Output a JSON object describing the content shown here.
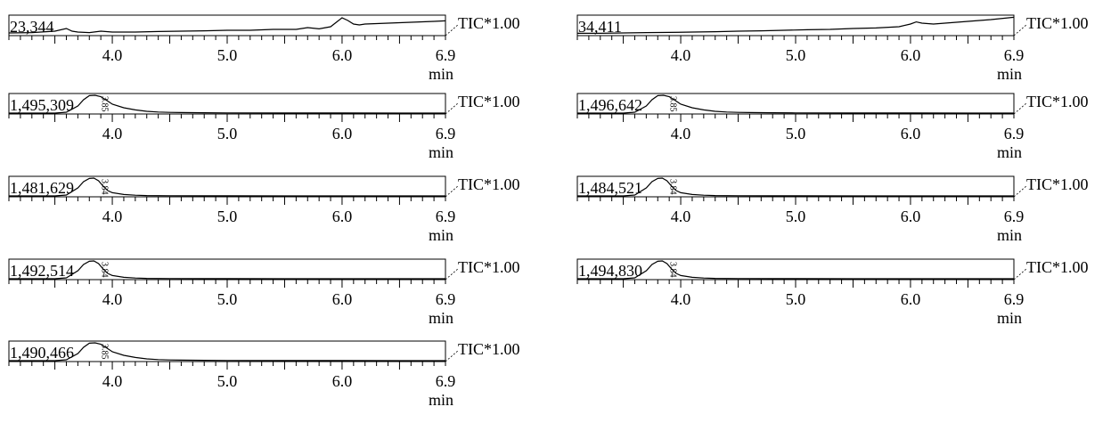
{
  "chart_data": [
    {
      "type": "line",
      "y_scale_label": "23,344",
      "right_label": "TIC*1.00",
      "x_ticks": [
        "4.0",
        "5.0",
        "6.0",
        "6.9"
      ],
      "x_unit": "min",
      "xlim": [
        3.1,
        6.9
      ],
      "x": [
        3.1,
        3.3,
        3.5,
        3.6,
        3.65,
        3.7,
        3.8,
        3.9,
        4.0,
        4.2,
        4.4,
        4.6,
        4.8,
        5.0,
        5.2,
        5.4,
        5.6,
        5.7,
        5.8,
        5.9,
        5.95,
        6.0,
        6.05,
        6.1,
        6.15,
        6.2,
        6.4,
        6.6,
        6.8,
        6.9
      ],
      "y": [
        0.1,
        0.12,
        0.2,
        0.35,
        0.2,
        0.15,
        0.12,
        0.2,
        0.15,
        0.15,
        0.18,
        0.2,
        0.22,
        0.25,
        0.25,
        0.3,
        0.3,
        0.4,
        0.33,
        0.45,
        0.7,
        0.95,
        0.8,
        0.6,
        0.55,
        0.6,
        0.65,
        0.7,
        0.75,
        0.78
      ],
      "ylim": [
        0,
        1
      ]
    },
    {
      "type": "line",
      "y_scale_label": "34,411",
      "right_label": "TIC*1.00",
      "x_ticks": [
        "4.0",
        "5.0",
        "6.0",
        "6.9"
      ],
      "x_unit": "min",
      "xlim": [
        3.1,
        6.9
      ],
      "x": [
        3.1,
        3.3,
        3.5,
        3.7,
        3.9,
        4.1,
        4.3,
        4.5,
        4.7,
        4.9,
        5.1,
        5.3,
        5.5,
        5.7,
        5.9,
        6.0,
        6.05,
        6.1,
        6.2,
        6.3,
        6.5,
        6.7,
        6.9
      ],
      "y": [
        0.08,
        0.08,
        0.1,
        0.12,
        0.13,
        0.15,
        0.17,
        0.2,
        0.22,
        0.25,
        0.28,
        0.3,
        0.35,
        0.38,
        0.45,
        0.6,
        0.72,
        0.65,
        0.6,
        0.65,
        0.75,
        0.85,
        0.98
      ],
      "ylim": [
        0,
        1
      ]
    },
    {
      "type": "line",
      "y_scale_label": "1,495,309",
      "peak_label": "3.85",
      "right_label": "TIC*1.00",
      "x_ticks": [
        "4.0",
        "5.0",
        "6.0",
        "6.9"
      ],
      "x_unit": "min",
      "xlim": [
        3.1,
        6.9
      ],
      "x": [
        3.1,
        3.5,
        3.6,
        3.7,
        3.75,
        3.8,
        3.85,
        3.9,
        3.95,
        4.0,
        4.1,
        4.2,
        4.3,
        4.4,
        4.5,
        4.6,
        4.8,
        5.0,
        5.5,
        6.0,
        6.5,
        6.9
      ],
      "y": [
        0,
        0,
        0.05,
        0.4,
        0.75,
        0.98,
        1.0,
        0.92,
        0.72,
        0.5,
        0.3,
        0.18,
        0.1,
        0.06,
        0.04,
        0.03,
        0.02,
        0.01,
        0.005,
        0.003,
        0.002,
        0.002
      ],
      "ylim": [
        0,
        1
      ]
    },
    {
      "type": "line",
      "y_scale_label": "1,496,642",
      "peak_label": "3.85",
      "right_label": "TIC*1.00",
      "x_ticks": [
        "4.0",
        "5.0",
        "6.0",
        "6.9"
      ],
      "x_unit": "min",
      "xlim": [
        3.1,
        6.9
      ],
      "x": [
        3.1,
        3.5,
        3.6,
        3.7,
        3.75,
        3.8,
        3.85,
        3.9,
        3.95,
        4.0,
        4.1,
        4.2,
        4.3,
        4.4,
        4.5,
        4.6,
        4.8,
        5.0,
        5.5,
        6.0,
        6.5,
        6.9
      ],
      "y": [
        0,
        0,
        0.05,
        0.4,
        0.75,
        0.98,
        1.0,
        0.92,
        0.72,
        0.5,
        0.3,
        0.18,
        0.1,
        0.06,
        0.04,
        0.03,
        0.02,
        0.01,
        0.005,
        0.003,
        0.002,
        0.002
      ],
      "ylim": [
        0,
        1
      ]
    },
    {
      "type": "line",
      "y_scale_label": "1,481,629",
      "peak_label": "3.84",
      "right_label": "TIC*1.00",
      "x_ticks": [
        "4.0",
        "5.0",
        "6.0",
        "6.9"
      ],
      "x_unit": "min",
      "xlim": [
        3.1,
        6.9
      ],
      "x": [
        3.1,
        3.5,
        3.6,
        3.7,
        3.75,
        3.8,
        3.84,
        3.88,
        3.92,
        3.96,
        4.0,
        4.1,
        4.2,
        4.3,
        4.5,
        4.8,
        5.0,
        5.5,
        6.0,
        6.9
      ],
      "y": [
        0,
        0,
        0.05,
        0.45,
        0.8,
        0.98,
        1.0,
        0.85,
        0.55,
        0.3,
        0.18,
        0.08,
        0.04,
        0.02,
        0.01,
        0.005,
        0.003,
        0.002,
        0.002,
        0.002
      ],
      "ylim": [
        0,
        1
      ]
    },
    {
      "type": "line",
      "y_scale_label": "1,484,521",
      "peak_label": "3.84",
      "right_label": "TIC*1.00",
      "x_ticks": [
        "4.0",
        "5.0",
        "6.0",
        "6.9"
      ],
      "x_unit": "min",
      "xlim": [
        3.1,
        6.9
      ],
      "x": [
        3.1,
        3.5,
        3.6,
        3.7,
        3.75,
        3.8,
        3.84,
        3.88,
        3.92,
        3.96,
        4.0,
        4.1,
        4.2,
        4.3,
        4.5,
        4.8,
        5.0,
        5.5,
        6.0,
        6.9
      ],
      "y": [
        0,
        0,
        0.05,
        0.45,
        0.8,
        0.98,
        1.0,
        0.85,
        0.55,
        0.3,
        0.18,
        0.08,
        0.04,
        0.02,
        0.01,
        0.005,
        0.003,
        0.002,
        0.002,
        0.002
      ],
      "ylim": [
        0,
        1
      ]
    },
    {
      "type": "line",
      "y_scale_label": "1,492,514",
      "peak_label": "3.84",
      "right_label": "TIC*1.00",
      "x_ticks": [
        "4.0",
        "5.0",
        "6.0",
        "6.9"
      ],
      "x_unit": "min",
      "xlim": [
        3.1,
        6.9
      ],
      "x": [
        3.1,
        3.5,
        3.6,
        3.7,
        3.75,
        3.8,
        3.84,
        3.88,
        3.92,
        3.96,
        4.0,
        4.1,
        4.2,
        4.3,
        4.5,
        4.8,
        5.0,
        5.5,
        6.0,
        6.9
      ],
      "y": [
        0,
        0,
        0.05,
        0.45,
        0.8,
        0.98,
        1.0,
        0.85,
        0.55,
        0.3,
        0.18,
        0.08,
        0.04,
        0.02,
        0.01,
        0.005,
        0.003,
        0.002,
        0.002,
        0.002
      ],
      "ylim": [
        0,
        1
      ]
    },
    {
      "type": "line",
      "y_scale_label": "1,494,830",
      "peak_label": "3.84",
      "right_label": "TIC*1.00",
      "x_ticks": [
        "4.0",
        "5.0",
        "6.0",
        "6.9"
      ],
      "x_unit": "min",
      "xlim": [
        3.1,
        6.9
      ],
      "x": [
        3.1,
        3.5,
        3.6,
        3.7,
        3.75,
        3.8,
        3.84,
        3.88,
        3.92,
        3.96,
        4.0,
        4.1,
        4.2,
        4.3,
        4.5,
        4.8,
        5.0,
        5.5,
        6.0,
        6.9
      ],
      "y": [
        0,
        0,
        0.05,
        0.45,
        0.8,
        0.98,
        1.0,
        0.85,
        0.55,
        0.3,
        0.18,
        0.08,
        0.04,
        0.02,
        0.01,
        0.005,
        0.003,
        0.002,
        0.002,
        0.002
      ],
      "ylim": [
        0,
        1
      ]
    },
    {
      "type": "line",
      "y_scale_label": "1,490,466",
      "peak_label": "3.85",
      "right_label": "TIC*1.00",
      "x_ticks": [
        "4.0",
        "5.0",
        "6.0",
        "6.9"
      ],
      "x_unit": "min",
      "xlim": [
        3.1,
        6.9
      ],
      "x": [
        3.1,
        3.5,
        3.6,
        3.7,
        3.75,
        3.8,
        3.85,
        3.9,
        3.95,
        4.0,
        4.1,
        4.2,
        4.3,
        4.4,
        4.5,
        4.6,
        4.8,
        5.0,
        5.5,
        6.0,
        6.5,
        6.9
      ],
      "y": [
        0,
        0,
        0.05,
        0.4,
        0.75,
        0.98,
        1.0,
        0.92,
        0.72,
        0.5,
        0.3,
        0.18,
        0.1,
        0.06,
        0.04,
        0.03,
        0.02,
        0.01,
        0.005,
        0.003,
        0.002,
        0.002
      ],
      "ylim": [
        0,
        1
      ]
    }
  ]
}
